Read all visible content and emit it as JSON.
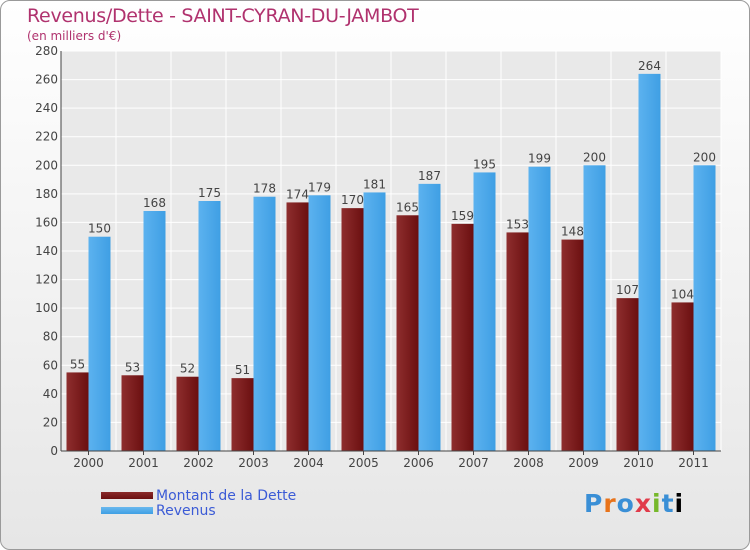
{
  "header": {
    "title": "Revenus/Dette - SAINT-CYRAN-DU-JAMBOT",
    "subtitle": "(en milliers d'€)"
  },
  "legend": {
    "items": [
      {
        "label": "Montant de la Dette",
        "color": "#6b0f10"
      },
      {
        "label": "Revenus",
        "color": "#3f9fe4"
      }
    ]
  },
  "logo": {
    "text": "Proxiti"
  },
  "chart_data": {
    "type": "bar",
    "categories": [
      "2000",
      "2001",
      "2002",
      "2003",
      "2004",
      "2005",
      "2006",
      "2007",
      "2008",
      "2009",
      "2010",
      "2011"
    ],
    "series": [
      {
        "name": "Montant de la Dette",
        "color": "#6b0f10",
        "values": [
          55,
          53,
          52,
          51,
          174,
          170,
          165,
          159,
          153,
          148,
          107,
          104
        ]
      },
      {
        "name": "Revenus",
        "color": "#3f9fe4",
        "values": [
          150,
          168,
          175,
          178,
          179,
          181,
          187,
          195,
          199,
          200,
          264,
          200
        ]
      }
    ],
    "title": "Revenus/Dette - SAINT-CYRAN-DU-JAMBOT",
    "ylim": [
      0,
      280
    ],
    "yticks": [
      0,
      20,
      40,
      60,
      80,
      100,
      120,
      140,
      160,
      180,
      200,
      220,
      240,
      260,
      280
    ],
    "grid": true,
    "legend_position": "bottom-left"
  }
}
